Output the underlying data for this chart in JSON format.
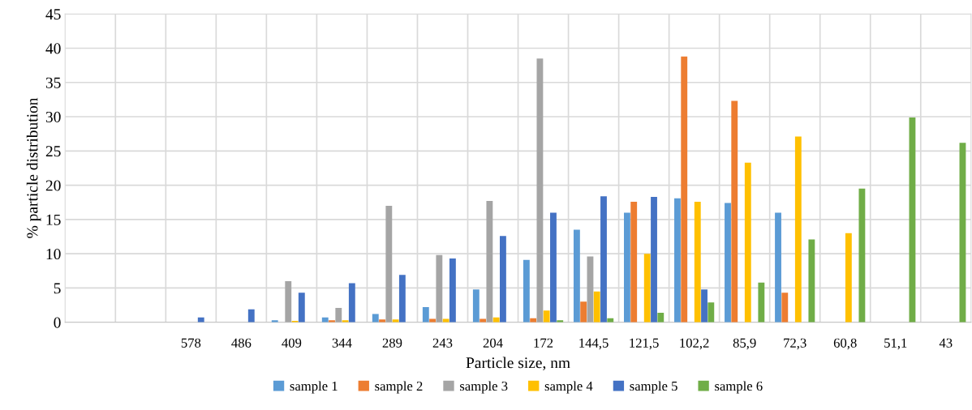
{
  "chart_data": {
    "type": "bar",
    "xlabel": "Particle size, nm",
    "ylabel": "% particle distribution",
    "categories": [
      null,
      null,
      "578",
      "486",
      "409",
      "344",
      "289",
      "243",
      "204",
      "172",
      "144,5",
      "121,5",
      "102,2",
      "85,9",
      "72,3",
      "60,8",
      "51,1",
      "43"
    ],
    "series": [
      {
        "name": "sample 1",
        "color": "#5b9bd5",
        "values": [
          0,
          0,
          0,
          0,
          0.3,
          0.7,
          1.2,
          2.2,
          4.8,
          9.1,
          13.5,
          16.0,
          18.1,
          17.4,
          16.0,
          0,
          0,
          0
        ]
      },
      {
        "name": "sample 2",
        "color": "#ed7d31",
        "values": [
          0,
          0,
          0,
          0,
          0,
          0.3,
          0.4,
          0.5,
          0.5,
          0.6,
          3.0,
          17.6,
          38.8,
          32.3,
          4.3,
          0,
          0,
          0
        ]
      },
      {
        "name": "sample 3",
        "color": "#a5a5a5",
        "values": [
          0,
          0,
          0,
          0,
          6.0,
          2.1,
          17.0,
          9.8,
          17.7,
          38.5,
          9.6,
          0,
          0,
          0,
          0,
          0,
          0,
          0
        ]
      },
      {
        "name": "sample 4",
        "color": "#ffc000",
        "values": [
          0,
          0,
          0,
          0,
          0.2,
          0.3,
          0.4,
          0.5,
          0.7,
          1.7,
          4.5,
          10.0,
          17.6,
          23.3,
          27.1,
          13.0,
          0,
          0
        ]
      },
      {
        "name": "sample 5",
        "color": "#4472c4",
        "values": [
          0,
          0,
          0.7,
          1.9,
          4.3,
          5.7,
          6.9,
          9.3,
          12.6,
          16.0,
          18.4,
          18.3,
          4.8,
          0,
          0,
          0,
          0,
          0
        ]
      },
      {
        "name": "sample 6",
        "color": "#70ad47",
        "values": [
          0,
          0,
          0,
          0,
          0,
          0,
          0,
          0,
          0,
          0.3,
          0.6,
          1.4,
          2.9,
          5.8,
          12.1,
          19.5,
          29.9,
          26.2
        ]
      }
    ],
    "ylim": [
      0,
      45
    ],
    "yticks": [
      0,
      5,
      10,
      15,
      20,
      25,
      30,
      35,
      40,
      45
    ],
    "grid": true,
    "legend": "bottom"
  }
}
